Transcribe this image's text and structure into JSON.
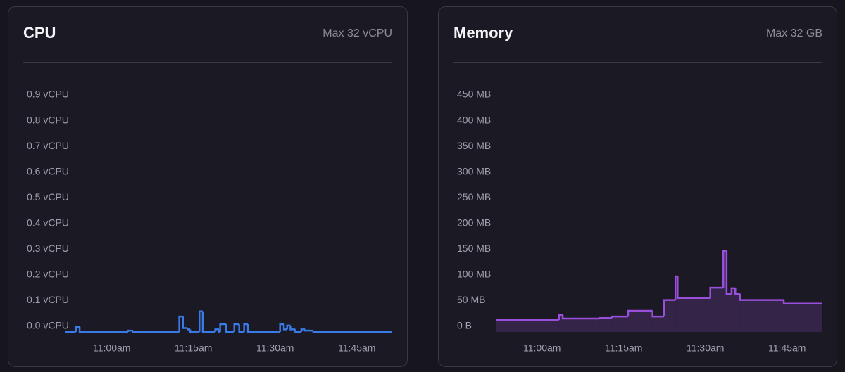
{
  "chart_data": [
    {
      "type": "line",
      "step": true,
      "fill": false,
      "title": "CPU",
      "subtitle": "Max 32 vCPU",
      "color": "#3a7ae6",
      "x": [
        651.5,
        653.4,
        654.1,
        663.0,
        663.9,
        672.4,
        673.1,
        673.9,
        674.4,
        676.1,
        676.7,
        679.0,
        679.7,
        679.9,
        681.0,
        682.5,
        683.4,
        684.3,
        685.0,
        690.9,
        691.6,
        692.2,
        692.8,
        693.7,
        694.8,
        695.5,
        697.0,
        711.5
      ],
      "values": [
        0,
        0.02,
        0,
        0.005,
        0,
        0.06,
        0.015,
        0.01,
        0,
        0.08,
        0,
        0.01,
        0,
        0.03,
        0,
        0.03,
        0,
        0.03,
        0,
        0.03,
        0.01,
        0.025,
        0.01,
        0,
        0.01,
        0.005,
        0,
        0
      ],
      "xlim": [
        651.5,
        711.5
      ],
      "xticks": [
        {
          "value": 660,
          "label": "11:00am"
        },
        {
          "value": 675,
          "label": "11:15am"
        },
        {
          "value": 690,
          "label": "11:30am"
        },
        {
          "value": 705,
          "label": "11:45am"
        }
      ],
      "ylim": [
        0,
        0.9
      ],
      "yticks": [
        {
          "value": 0,
          "label": "0.0 vCPU"
        },
        {
          "value": 0.1,
          "label": "0.1 vCPU"
        },
        {
          "value": 0.2,
          "label": "0.2 vCPU"
        },
        {
          "value": 0.3,
          "label": "0.3 vCPU"
        },
        {
          "value": 0.4,
          "label": "0.4 vCPU"
        },
        {
          "value": 0.5,
          "label": "0.5 vCPU"
        },
        {
          "value": 0.6,
          "label": "0.6 vCPU"
        },
        {
          "value": 0.7,
          "label": "0.7 vCPU"
        },
        {
          "value": 0.8,
          "label": "0.8 vCPU"
        },
        {
          "value": 0.9,
          "label": "0.9 vCPU"
        }
      ]
    },
    {
      "type": "line",
      "step": true,
      "fill": true,
      "title": "Memory",
      "subtitle": "Max 32 GB",
      "color": "#9a4fdc",
      "x": [
        651.5,
        663.1,
        663.8,
        670.6,
        672.8,
        675.8,
        680.3,
        682.4,
        684.5,
        684.9,
        690.9,
        693.3,
        693.9,
        694.8,
        695.5,
        696.4,
        704.4,
        711.5
      ],
      "values": [
        23,
        33,
        26,
        27,
        30,
        41,
        30,
        62,
        108,
        66,
        86,
        157,
        74,
        85,
        74,
        62,
        55,
        55
      ],
      "xlim": [
        651.5,
        711.5
      ],
      "xticks": [
        {
          "value": 660,
          "label": "11:00am"
        },
        {
          "value": 675,
          "label": "11:15am"
        },
        {
          "value": 690,
          "label": "11:30am"
        },
        {
          "value": 705,
          "label": "11:45am"
        }
      ],
      "ylim": [
        0,
        450
      ],
      "yticks": [
        {
          "value": 0,
          "label": "0 B"
        },
        {
          "value": 50,
          "label": "50 MB"
        },
        {
          "value": 100,
          "label": "100 MB"
        },
        {
          "value": 150,
          "label": "150 MB"
        },
        {
          "value": 200,
          "label": "200 MB"
        },
        {
          "value": 250,
          "label": "250 MB"
        },
        {
          "value": 300,
          "label": "300 MB"
        },
        {
          "value": 350,
          "label": "350 MB"
        },
        {
          "value": 400,
          "label": "400 MB"
        },
        {
          "value": 450,
          "label": "450 MB"
        }
      ]
    }
  ]
}
